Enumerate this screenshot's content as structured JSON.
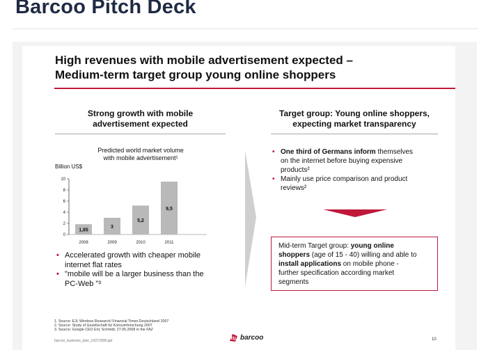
{
  "page": {
    "title": "Barcoo Pitch Deck"
  },
  "slide": {
    "title_line1": "High revenues with mobile advertisement expected –",
    "title_line2": "Medium-term target group young online shoppers",
    "left": {
      "header_line1": "Strong growth with mobile",
      "header_line2": "advertisement expected",
      "chart_caption_line1": "Predicted world market volume",
      "chart_caption_line2": "with mobile advertisement¹",
      "unit_label": "Billion US$",
      "bullets": [
        {
          "line1": "Accelerated growth with cheaper mobile",
          "line2": "internet flat rates"
        },
        {
          "line1": "\"mobile will be a larger business than the",
          "line2": "PC-Web \"³"
        }
      ]
    },
    "right": {
      "header_line1": "Target group: Young online shoppers,",
      "header_line2": "expecting market transparency",
      "bullet1_bold": "One third of Germans inform",
      "bullet1_rest_line1": " themselves",
      "bullet1_line2": "on the internet before buying expensive",
      "bullet1_line3": "products²",
      "bullet2_line1": "Mainly use price comparison and product",
      "bullet2_line2": "reviews²",
      "box": {
        "l1_a": "Mid-term Target group: ",
        "l1_b": "young online",
        "l2_a": "shoppers",
        "l2_b": " (age of 15 - 40) willing and able to",
        "l3_a": "install applications",
        "l3_b": " on mobile phone -",
        "l4": "further specification according market",
        "l5": "segments"
      },
      "arrow_color": "#c0183a"
    },
    "footnotes": [
      "1.   Source: EJL Wireless Research/ Financial Times Deutschland 2007",
      "2.   Source: Study of Gesellschaft für Konsumforschung 2007",
      "3.   Source: Google CEO Eric Schmidt, 27.05.2008 in the FAZ"
    ],
    "file_name": "barcoo_business_plan_01072008.ppt",
    "logo_text": "barcoo",
    "page_number": "10"
  },
  "chart_data": {
    "type": "bar",
    "title": "Predicted world market volume with mobile advertisement¹",
    "ylabel": "Billion US$",
    "categories": [
      "2008",
      "2009",
      "2010",
      "2011"
    ],
    "values": [
      1.85,
      3,
      5.2,
      9.5
    ],
    "value_labels": [
      "1,85",
      "3",
      "5,2",
      "9,5"
    ],
    "yticks": [
      "0",
      "2",
      "4",
      "6",
      "8",
      "10"
    ],
    "ylim": [
      0,
      10
    ],
    "bar_color": "#b9b9b9",
    "grid": false
  }
}
